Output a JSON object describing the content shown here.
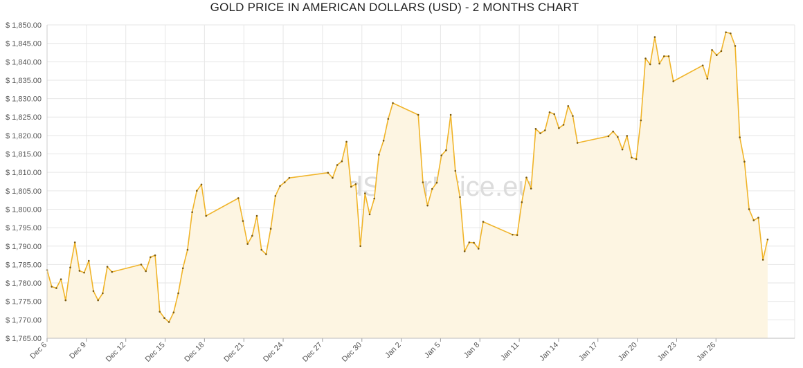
{
  "chart_data": {
    "type": "area",
    "title": "GOLD PRICE IN AMERICAN DOLLARS (USD) - 2 MONTHS CHART",
    "xlabel": "",
    "ylabel": "",
    "ylim": [
      1765,
      1850
    ],
    "xlim": [
      0,
      1
    ],
    "grid": true,
    "legend": "none",
    "watermark": "GoldSilverPrice.eu",
    "colors": {
      "line": "#f0b429",
      "fill": "#fdf5e2",
      "point": "#7a5a10",
      "grid": "#e6e6e6"
    },
    "y_ticks": [
      1765,
      1770,
      1775,
      1780,
      1785,
      1790,
      1795,
      1800,
      1805,
      1810,
      1815,
      1820,
      1825,
      1830,
      1835,
      1840,
      1845,
      1850
    ],
    "y_tick_labels": [
      "$ 1,765.00",
      "$ 1,770.00",
      "$ 1,775.00",
      "$ 1,780.00",
      "$ 1,785.00",
      "$ 1,790.00",
      "$ 1,795.00",
      "$ 1,800.00",
      "$ 1,805.00",
      "$ 1,810.00",
      "$ 1,815.00",
      "$ 1,820.00",
      "$ 1,825.00",
      "$ 1,830.00",
      "$ 1,835.00",
      "$ 1,840.00",
      "$ 1,845.00",
      "$ 1,850.00"
    ],
    "x_ticks": [
      {
        "label": "Dec 6",
        "pos": 0.0
      },
      {
        "label": "Dec 9",
        "pos": 0.0526
      },
      {
        "label": "Dec 12",
        "pos": 0.1053
      },
      {
        "label": "Dec 15",
        "pos": 0.1579
      },
      {
        "label": "Dec 18",
        "pos": 0.2105
      },
      {
        "label": "Dec 21",
        "pos": 0.2632
      },
      {
        "label": "Dec 24",
        "pos": 0.3158
      },
      {
        "label": "Dec 27",
        "pos": 0.3684
      },
      {
        "label": "Dec 30",
        "pos": 0.4211
      },
      {
        "label": "Jan 2",
        "pos": 0.4737
      },
      {
        "label": "Jan 5",
        "pos": 0.5263
      },
      {
        "label": "Jan 8",
        "pos": 0.5789
      },
      {
        "label": "Jan 11",
        "pos": 0.6316
      },
      {
        "label": "Jan 14",
        "pos": 0.6842
      },
      {
        "label": "Jan 17",
        "pos": 0.7368
      },
      {
        "label": "Jan 20",
        "pos": 0.7895
      },
      {
        "label": "Jan 23",
        "pos": 0.8421
      },
      {
        "label": "Jan 26",
        "pos": 0.8947
      }
    ],
    "series": [
      {
        "points": [
          [
            0.0,
            1783.5
          ],
          [
            0.0062,
            1779.0
          ],
          [
            0.0124,
            1778.6
          ],
          [
            0.0186,
            1781.0
          ],
          [
            0.0248,
            1775.3
          ],
          [
            0.031,
            1784.2
          ],
          [
            0.0372,
            1791.0
          ],
          [
            0.0434,
            1783.3
          ],
          [
            0.0496,
            1782.8
          ],
          [
            0.0558,
            1786.0
          ],
          [
            0.062,
            1777.8
          ],
          [
            0.0682,
            1775.3
          ],
          [
            0.0744,
            1777.2
          ],
          [
            0.0806,
            1784.4
          ],
          [
            0.0868,
            1783.0
          ],
          [
            0.1259,
            1785.0
          ],
          [
            0.1321,
            1783.2
          ],
          [
            0.1383,
            1787.0
          ],
          [
            0.1445,
            1787.5
          ],
          [
            0.1507,
            1772.2
          ],
          [
            0.1569,
            1770.5
          ],
          [
            0.1631,
            1769.4
          ],
          [
            0.1693,
            1772.0
          ],
          [
            0.1755,
            1777.2
          ],
          [
            0.1817,
            1784.0
          ],
          [
            0.1879,
            1789.0
          ],
          [
            0.1941,
            1799.2
          ],
          [
            0.2003,
            1805.0
          ],
          [
            0.2065,
            1806.7
          ],
          [
            0.2127,
            1798.2
          ],
          [
            0.2558,
            1803.0
          ],
          [
            0.262,
            1796.8
          ],
          [
            0.2682,
            1790.6
          ],
          [
            0.2744,
            1792.8
          ],
          [
            0.2806,
            1798.2
          ],
          [
            0.2868,
            1789.0
          ],
          [
            0.293,
            1787.8
          ],
          [
            0.2992,
            1794.7
          ],
          [
            0.3054,
            1803.6
          ],
          [
            0.3116,
            1806.3
          ],
          [
            0.3178,
            1807.3
          ],
          [
            0.324,
            1808.5
          ],
          [
            0.3757,
            1809.9
          ],
          [
            0.3819,
            1808.5
          ],
          [
            0.3881,
            1812.0
          ],
          [
            0.3943,
            1813.0
          ],
          [
            0.4005,
            1818.3
          ],
          [
            0.4067,
            1806.1
          ],
          [
            0.4129,
            1806.8
          ],
          [
            0.4191,
            1790.0
          ],
          [
            0.4253,
            1804.3
          ],
          [
            0.4315,
            1798.6
          ],
          [
            0.4377,
            1802.9
          ],
          [
            0.4439,
            1814.8
          ],
          [
            0.4501,
            1818.6
          ],
          [
            0.4563,
            1824.5
          ],
          [
            0.4625,
            1828.8
          ],
          [
            0.4965,
            1825.6
          ],
          [
            0.5027,
            1807.3
          ],
          [
            0.5089,
            1801.0
          ],
          [
            0.5151,
            1805.5
          ],
          [
            0.5213,
            1807.2
          ],
          [
            0.5275,
            1814.6
          ],
          [
            0.5337,
            1816.0
          ],
          [
            0.5399,
            1825.6
          ],
          [
            0.5461,
            1810.4
          ],
          [
            0.5523,
            1803.3
          ],
          [
            0.5585,
            1788.6
          ],
          [
            0.5647,
            1791.0
          ],
          [
            0.5709,
            1790.9
          ],
          [
            0.5771,
            1789.3
          ],
          [
            0.5833,
            1796.6
          ],
          [
            0.6226,
            1793.1
          ],
          [
            0.6288,
            1793.0
          ],
          [
            0.635,
            1801.9
          ],
          [
            0.6412,
            1808.6
          ],
          [
            0.6474,
            1805.6
          ],
          [
            0.6536,
            1821.8
          ],
          [
            0.6598,
            1820.6
          ],
          [
            0.666,
            1821.4
          ],
          [
            0.6722,
            1826.3
          ],
          [
            0.6784,
            1825.8
          ],
          [
            0.6846,
            1822.0
          ],
          [
            0.6908,
            1822.9
          ],
          [
            0.697,
            1828.0
          ],
          [
            0.7032,
            1825.3
          ],
          [
            0.7094,
            1818.0
          ],
          [
            0.7509,
            1819.8
          ],
          [
            0.7571,
            1821.1
          ],
          [
            0.7633,
            1819.6
          ],
          [
            0.7695,
            1816.2
          ],
          [
            0.7757,
            1819.9
          ],
          [
            0.7819,
            1814.0
          ],
          [
            0.7881,
            1813.6
          ],
          [
            0.7943,
            1824.1
          ],
          [
            0.8005,
            1840.9
          ],
          [
            0.8067,
            1839.3
          ],
          [
            0.8129,
            1846.7
          ],
          [
            0.8191,
            1839.5
          ],
          [
            0.8253,
            1841.5
          ],
          [
            0.8315,
            1841.5
          ],
          [
            0.8377,
            1834.7
          ],
          [
            0.877,
            1839.0
          ],
          [
            0.8832,
            1835.4
          ],
          [
            0.8894,
            1843.2
          ],
          [
            0.8956,
            1841.8
          ],
          [
            0.9018,
            1842.9
          ],
          [
            0.908,
            1848.0
          ],
          [
            0.9142,
            1847.7
          ],
          [
            0.9204,
            1844.3
          ],
          [
            0.9266,
            1819.5
          ],
          [
            0.9328,
            1812.9
          ],
          [
            0.939,
            1800.0
          ],
          [
            0.9452,
            1797.0
          ],
          [
            0.9514,
            1797.7
          ],
          [
            0.9576,
            1786.3
          ],
          [
            0.9638,
            1791.8
          ]
        ]
      }
    ]
  }
}
